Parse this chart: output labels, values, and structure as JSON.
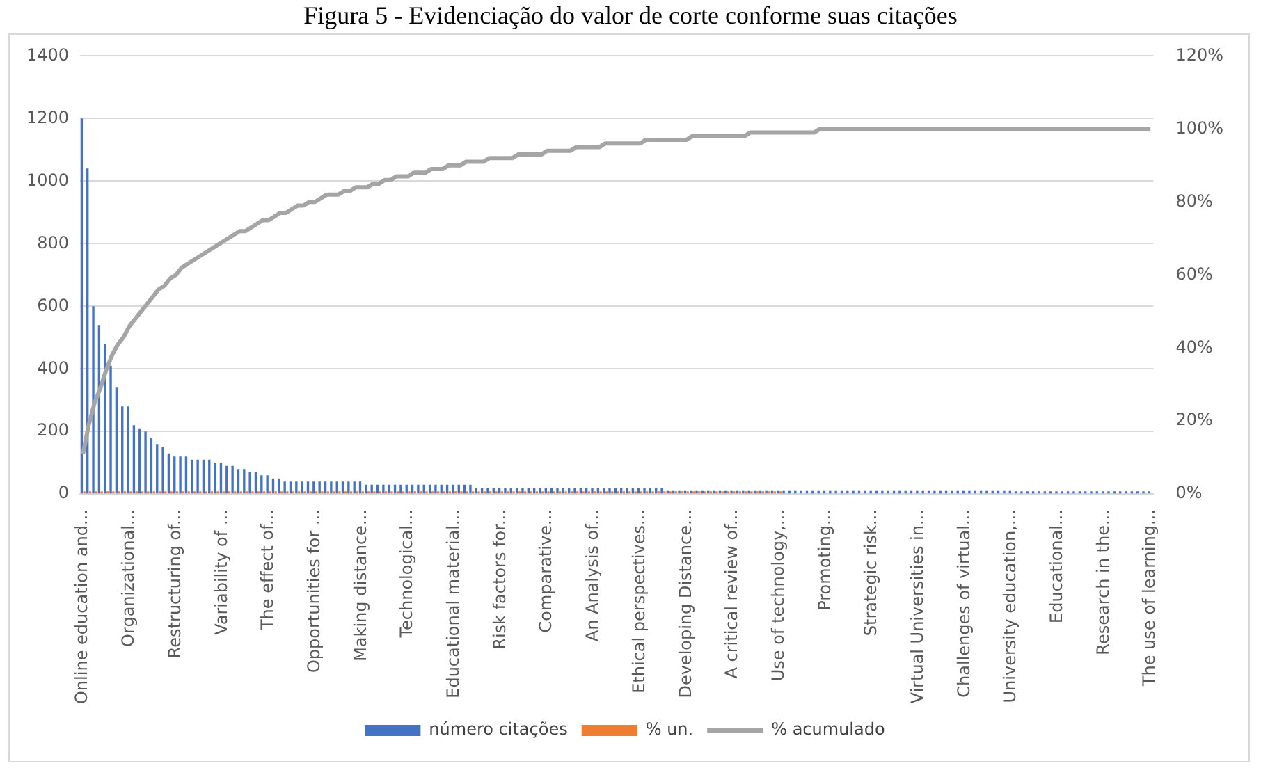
{
  "chart_data": {
    "type": "bar",
    "title": "Figura 5 - Evidenciação do valor de corte conforme suas citações",
    "categories": [
      "Online education and...",
      null,
      null,
      null,
      null,
      null,
      null,
      null,
      "Organizational...",
      null,
      null,
      null,
      null,
      null,
      null,
      null,
      "Restructuring of...",
      null,
      null,
      null,
      null,
      null,
      null,
      null,
      "Variability of ...",
      null,
      null,
      null,
      null,
      null,
      null,
      null,
      "The effect of...",
      null,
      null,
      null,
      null,
      null,
      null,
      null,
      "Opportunities for ...",
      null,
      null,
      null,
      null,
      null,
      null,
      null,
      "Making distance...",
      null,
      null,
      null,
      null,
      null,
      null,
      null,
      "Technological...",
      null,
      null,
      null,
      null,
      null,
      null,
      null,
      "Educational material...",
      null,
      null,
      null,
      null,
      null,
      null,
      null,
      "Risk factors for...",
      null,
      null,
      null,
      null,
      null,
      null,
      null,
      "Comparative...",
      null,
      null,
      null,
      null,
      null,
      null,
      null,
      "An Analysis of...",
      null,
      null,
      null,
      null,
      null,
      null,
      null,
      "Ethical perspectives...",
      null,
      null,
      null,
      null,
      null,
      null,
      null,
      "Developing Distance...",
      null,
      null,
      null,
      null,
      null,
      null,
      null,
      "A critical review of...",
      null,
      null,
      null,
      null,
      null,
      null,
      null,
      "Use of technology,...",
      null,
      null,
      null,
      null,
      null,
      null,
      null,
      "Promoting...",
      null,
      null,
      null,
      null,
      null,
      null,
      null,
      "Strategic risk...",
      null,
      null,
      null,
      null,
      null,
      null,
      null,
      "Virtual Universities in...",
      null,
      null,
      null,
      null,
      null,
      null,
      null,
      "Challenges of virtual...",
      null,
      null,
      null,
      null,
      null,
      null,
      null,
      "University education,...",
      null,
      null,
      null,
      null,
      null,
      null,
      null,
      "Educational...",
      null,
      null,
      null,
      null,
      null,
      null,
      null,
      "Research in the...",
      null,
      null,
      null,
      null,
      null,
      null,
      null,
      "The use of learning..."
    ],
    "series": [
      {
        "name": "número citações",
        "color": "#4472c4",
        "values": [
          1200,
          1040,
          600,
          540,
          480,
          410,
          340,
          280,
          280,
          220,
          210,
          200,
          180,
          160,
          150,
          130,
          120,
          120,
          120,
          110,
          110,
          110,
          110,
          100,
          100,
          90,
          90,
          80,
          80,
          70,
          70,
          60,
          60,
          50,
          50,
          40,
          40,
          40,
          40,
          40,
          40,
          40,
          40,
          40,
          40,
          40,
          40,
          40,
          40,
          30,
          30,
          30,
          30,
          30,
          30,
          30,
          30,
          30,
          30,
          30,
          30,
          30,
          30,
          30,
          30,
          30,
          30,
          30,
          20,
          20,
          20,
          20,
          20,
          20,
          20,
          20,
          20,
          20,
          20,
          20,
          20,
          20,
          20,
          20,
          20,
          20,
          20,
          20,
          20,
          20,
          20,
          20,
          20,
          20,
          20,
          20,
          20,
          20,
          20,
          20,
          20,
          10,
          10,
          10,
          10,
          10,
          10,
          10,
          10,
          10,
          10,
          10,
          10,
          10,
          10,
          10,
          10,
          10,
          10,
          10,
          10,
          10,
          10,
          10,
          10,
          10,
          10,
          10,
          10,
          10,
          10,
          10,
          10,
          10,
          10,
          10,
          10,
          10,
          10,
          10,
          10,
          10,
          10,
          10,
          10,
          10,
          10,
          10,
          10,
          10,
          10,
          10,
          10,
          10,
          10,
          10,
          10,
          10,
          10,
          10,
          10,
          0,
          0,
          0,
          0,
          0,
          0,
          0,
          0,
          0,
          0,
          0,
          0,
          0,
          0,
          0,
          0,
          0,
          0,
          0,
          0,
          0,
          0,
          0,
          0
        ]
      },
      {
        "name": "% un.",
        "color": "#ed7d31",
        "values": [
          0,
          0,
          0,
          0,
          0,
          0,
          0,
          0,
          0,
          0,
          0,
          0,
          0,
          0,
          0,
          0,
          0,
          0,
          0,
          0,
          0,
          0,
          0,
          0,
          0,
          0,
          0,
          0,
          0,
          0,
          0,
          0,
          0,
          0,
          0,
          0,
          0,
          0,
          0,
          0,
          0,
          0,
          0,
          0,
          0,
          0,
          0,
          0,
          0,
          0,
          0,
          0,
          0,
          0,
          0,
          0,
          0,
          0,
          0,
          0,
          0,
          0,
          0,
          0,
          0,
          0,
          0,
          0,
          0,
          0,
          0,
          0,
          0,
          0,
          0,
          0,
          0,
          0,
          0,
          0,
          0,
          0,
          0,
          0,
          0,
          0,
          0,
          0,
          0,
          0,
          0,
          0,
          0,
          0,
          0,
          0,
          0,
          0,
          0,
          0,
          0,
          0,
          0,
          0,
          0,
          0,
          0,
          0,
          0,
          0,
          0,
          0,
          0,
          0,
          0,
          0,
          0,
          0,
          0,
          0,
          0,
          null,
          null,
          null,
          null,
          null,
          null,
          null,
          null,
          null,
          null,
          null,
          null,
          null,
          null,
          null,
          null,
          null,
          null,
          null,
          null,
          null,
          null,
          null,
          null,
          null,
          null,
          null,
          null,
          null,
          null,
          null,
          null,
          null,
          null,
          null,
          null,
          null,
          null,
          null,
          null,
          null,
          null,
          null,
          null,
          null,
          null,
          null,
          null,
          null,
          null,
          null,
          null,
          null,
          null,
          null,
          null,
          null,
          null,
          null,
          null,
          null,
          null,
          null,
          null
        ]
      },
      {
        "name": "% acumulado",
        "color": "#a5a5a5",
        "type": "line",
        "axis": "y2",
        "values": [
          11,
          19,
          25,
          29,
          34,
          38,
          41,
          43,
          46,
          48,
          50,
          52,
          54,
          56,
          57,
          59,
          60,
          62,
          63,
          64,
          65,
          66,
          67,
          68,
          69,
          70,
          71,
          72,
          72,
          73,
          74,
          75,
          75,
          76,
          77,
          77,
          78,
          79,
          79,
          80,
          80,
          81,
          82,
          82,
          82,
          83,
          83,
          84,
          84,
          84,
          85,
          85,
          86,
          86,
          87,
          87,
          87,
          88,
          88,
          88,
          89,
          89,
          89,
          90,
          90,
          90,
          91,
          91,
          91,
          91,
          92,
          92,
          92,
          92,
          92,
          93,
          93,
          93,
          93,
          93,
          94,
          94,
          94,
          94,
          94,
          95,
          95,
          95,
          95,
          95,
          96,
          96,
          96,
          96,
          96,
          96,
          96,
          97,
          97,
          97,
          97,
          97,
          97,
          97,
          97,
          98,
          98,
          98,
          98,
          98,
          98,
          98,
          98,
          98,
          98,
          99,
          99,
          99,
          99,
          99,
          99,
          99,
          99,
          99,
          99,
          99,
          99,
          100,
          100,
          100,
          100,
          100,
          100,
          100,
          100,
          100,
          100,
          100,
          100,
          100,
          100,
          100,
          100,
          100,
          100,
          100,
          100,
          100,
          100,
          100,
          100,
          100,
          100,
          100,
          100,
          100,
          100,
          100,
          100,
          100,
          100,
          100,
          100,
          100,
          100,
          100,
          100,
          100,
          100,
          100,
          100,
          100,
          100,
          100,
          100,
          100,
          100,
          100,
          100,
          100,
          100,
          100,
          100,
          100,
          100
        ]
      }
    ],
    "ylim": [
      0,
      1400
    ],
    "yticks": [
      0,
      200,
      400,
      600,
      800,
      1000,
      1200,
      1400
    ],
    "y2lim": [
      0,
      120
    ],
    "y2ticks": [
      {
        "value": 0,
        "label": "0%"
      },
      {
        "value": 20,
        "label": "20%"
      },
      {
        "value": 40,
        "label": "40%"
      },
      {
        "value": 60,
        "label": "60%"
      },
      {
        "value": 80,
        "label": "80%"
      },
      {
        "value": 100,
        "label": "100%"
      },
      {
        "value": 120,
        "label": "120%"
      }
    ],
    "grid": "y",
    "legend": "bottom",
    "marker": "none"
  }
}
